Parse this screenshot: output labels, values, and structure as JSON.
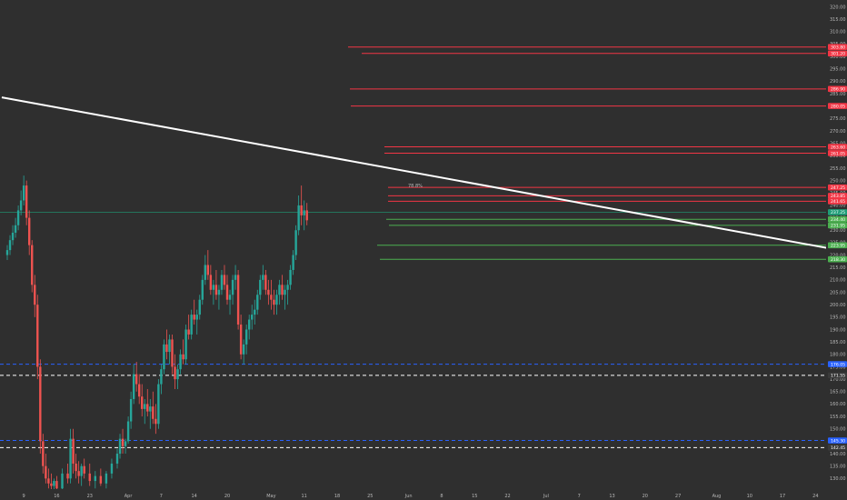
{
  "chart_data": {
    "type": "candlestick",
    "xaxis": {
      "tick_labels": [
        "9",
        "16",
        "23",
        "Apr",
        "7",
        "14",
        "20",
        "May",
        "11",
        "18",
        "25",
        "Jun",
        "8",
        "15",
        "22",
        "Jul",
        "7",
        "13",
        "20",
        "27",
        "Aug",
        "10",
        "17",
        "24"
      ],
      "tick_index": [
        3,
        9,
        15,
        22,
        28,
        34,
        40,
        48,
        54,
        60,
        66,
        73,
        79,
        85,
        91,
        98,
        104,
        110,
        116,
        122,
        129,
        135,
        141,
        147
      ]
    },
    "yaxis": {
      "range": [
        125,
        322
      ],
      "tick_labels": [
        "130.00",
        "135.00",
        "140.00",
        "145.00",
        "150.00",
        "155.00",
        "160.00",
        "165.00",
        "170.00",
        "175.00",
        "180.00",
        "185.00",
        "190.00",
        "195.00",
        "200.00",
        "205.00",
        "210.00",
        "215.00",
        "220.00",
        "225.00",
        "230.00",
        "235.00",
        "240.00",
        "245.00",
        "250.00",
        "255.00",
        "260.00",
        "265.00",
        "270.00",
        "275.00",
        "280.00",
        "285.00",
        "290.00",
        "295.00",
        "300.00",
        "305.00",
        "310.00",
        "315.00",
        "320.00"
      ]
    },
    "colors": {
      "background": "#2f2f2f",
      "up": "#26a69a",
      "down": "#ef5350",
      "resistance": "#f23645",
      "support": "#4caf50",
      "trendline": "#ffffff",
      "dashed_blue": "#2962ff",
      "dashed_white": "#ffffff",
      "last_price_line": "#1e9e78"
    },
    "candles": [
      [
        0,
        220,
        224,
        218,
        222
      ],
      [
        0.5,
        222,
        228,
        220,
        226
      ],
      [
        1,
        226,
        232,
        224,
        229
      ],
      [
        1.5,
        229,
        235,
        227,
        232
      ],
      [
        2,
        232,
        240,
        230,
        238
      ],
      [
        2.5,
        238,
        246,
        236,
        242
      ],
      [
        3,
        242,
        252,
        240,
        248
      ],
      [
        3.5,
        248,
        250,
        232,
        235
      ],
      [
        4,
        235,
        238,
        220,
        224
      ],
      [
        4.5,
        224,
        226,
        205,
        208
      ],
      [
        5,
        208,
        212,
        195,
        200
      ],
      [
        5.5,
        200,
        204,
        170,
        175
      ],
      [
        6,
        175,
        178,
        140,
        145
      ],
      [
        6.5,
        145,
        148,
        132,
        135
      ],
      [
        7,
        135,
        140,
        128,
        130
      ],
      [
        7.5,
        130,
        134,
        126,
        128
      ],
      [
        8,
        128,
        132,
        125,
        127
      ],
      [
        8.5,
        127,
        130,
        125,
        129
      ],
      [
        9,
        129,
        131,
        125,
        126
      ],
      [
        10,
        126,
        134,
        125,
        132
      ],
      [
        11,
        132,
        136,
        128,
        130
      ],
      [
        11.5,
        130,
        150,
        128,
        146
      ],
      [
        12,
        146,
        150,
        132,
        136
      ],
      [
        12.5,
        136,
        140,
        130,
        133
      ],
      [
        13,
        133,
        137,
        128,
        131
      ],
      [
        13.5,
        131,
        136,
        127,
        135
      ],
      [
        14,
        135,
        138,
        130,
        132
      ],
      [
        15,
        132,
        136,
        127,
        129
      ],
      [
        16,
        129,
        133,
        126,
        131
      ],
      [
        17,
        131,
        134,
        127,
        128
      ],
      [
        18,
        128,
        133,
        126,
        132
      ],
      [
        19,
        132,
        138,
        130,
        136
      ],
      [
        20,
        136,
        142,
        134,
        140
      ],
      [
        20.5,
        140,
        148,
        138,
        146
      ],
      [
        21,
        146,
        150,
        140,
        143
      ],
      [
        21.5,
        143,
        146,
        140,
        145
      ],
      [
        22,
        145,
        155,
        144,
        153
      ],
      [
        22.5,
        153,
        165,
        150,
        162
      ],
      [
        23,
        162,
        176,
        160,
        172
      ],
      [
        23.5,
        172,
        177,
        165,
        168
      ],
      [
        24,
        168,
        172,
        160,
        163
      ],
      [
        24.5,
        163,
        168,
        155,
        158
      ],
      [
        25,
        158,
        162,
        152,
        160
      ],
      [
        25.5,
        160,
        166,
        155,
        157
      ],
      [
        26,
        157,
        162,
        150,
        159
      ],
      [
        26.5,
        159,
        165,
        152,
        154
      ],
      [
        27,
        154,
        160,
        148,
        152
      ],
      [
        27.5,
        152,
        170,
        150,
        168
      ],
      [
        28,
        168,
        176,
        164,
        174
      ],
      [
        28.5,
        174,
        186,
        172,
        184
      ],
      [
        29,
        184,
        190,
        178,
        181
      ],
      [
        29.5,
        181,
        188,
        176,
        186
      ],
      [
        30,
        186,
        188,
        172,
        175
      ],
      [
        30.5,
        175,
        180,
        166,
        170
      ],
      [
        31,
        170,
        176,
        166,
        174
      ],
      [
        31.5,
        174,
        182,
        172,
        180
      ],
      [
        32,
        180,
        186,
        176,
        178
      ],
      [
        32.5,
        178,
        192,
        176,
        190
      ],
      [
        33,
        190,
        196,
        186,
        188
      ],
      [
        33.5,
        188,
        198,
        186,
        196
      ],
      [
        34,
        196,
        202,
        192,
        194
      ],
      [
        34.5,
        194,
        198,
        188,
        196
      ],
      [
        35,
        196,
        204,
        194,
        202
      ],
      [
        35.5,
        202,
        212,
        200,
        210
      ],
      [
        36,
        210,
        220,
        208,
        216
      ],
      [
        36.5,
        216,
        222,
        210,
        212
      ],
      [
        37,
        212,
        216,
        204,
        206
      ],
      [
        37.5,
        206,
        210,
        200,
        208
      ],
      [
        38,
        208,
        214,
        202,
        204
      ],
      [
        38.5,
        204,
        208,
        198,
        206
      ],
      [
        39,
        206,
        214,
        204,
        212
      ],
      [
        39.5,
        212,
        216,
        206,
        208
      ],
      [
        40,
        208,
        212,
        200,
        202
      ],
      [
        40.5,
        202,
        206,
        196,
        204
      ],
      [
        41,
        204,
        212,
        200,
        210
      ],
      [
        41.5,
        210,
        216,
        206,
        212
      ],
      [
        42,
        212,
        214,
        190,
        192
      ],
      [
        42.5,
        192,
        196,
        178,
        180
      ],
      [
        43,
        180,
        186,
        176,
        184
      ],
      [
        43.5,
        184,
        192,
        180,
        190
      ],
      [
        44,
        190,
        196,
        186,
        194
      ],
      [
        44.5,
        194,
        200,
        190,
        196
      ],
      [
        45,
        196,
        202,
        192,
        198
      ],
      [
        45.5,
        198,
        206,
        196,
        204
      ],
      [
        46,
        204,
        212,
        202,
        210
      ],
      [
        46.5,
        210,
        216,
        206,
        212
      ],
      [
        47,
        212,
        214,
        204,
        206
      ],
      [
        47.5,
        206,
        210,
        200,
        204
      ],
      [
        48,
        204,
        210,
        198,
        202
      ],
      [
        48.5,
        202,
        206,
        196,
        200
      ],
      [
        49,
        200,
        206,
        196,
        204
      ],
      [
        49.5,
        204,
        210,
        200,
        208
      ],
      [
        50,
        208,
        212,
        202,
        204
      ],
      [
        50.5,
        204,
        208,
        198,
        206
      ],
      [
        51,
        206,
        210,
        200,
        208
      ],
      [
        51.5,
        208,
        216,
        206,
        214
      ],
      [
        52,
        214,
        222,
        212,
        220
      ],
      [
        52.5,
        220,
        232,
        218,
        230
      ],
      [
        53,
        230,
        244,
        228,
        240
      ],
      [
        53.5,
        240,
        248,
        232,
        236
      ],
      [
        54,
        236,
        242,
        230,
        238
      ],
      [
        54.5,
        238,
        241,
        232,
        234
      ]
    ],
    "levels": [
      {
        "type": "resistance",
        "value": 303.8,
        "label": "303.80"
      },
      {
        "type": "resistance",
        "value": 301.2,
        "label": "301.20"
      },
      {
        "type": "resistance",
        "value": 286.9,
        "label": "286.90"
      },
      {
        "type": "resistance",
        "value": 280.05,
        "label": "280.05"
      },
      {
        "type": "resistance",
        "value": 263.6,
        "label": "263.60"
      },
      {
        "type": "resistance",
        "value": 261.05,
        "label": "261.05"
      },
      {
        "type": "resistance",
        "value": 247.25,
        "label": "247.25"
      },
      {
        "type": "resistance",
        "value": 243.85,
        "label": "243.85"
      },
      {
        "type": "resistance",
        "value": 241.65,
        "label": "241.65"
      },
      {
        "type": "support",
        "value": 234.4,
        "label": "234.40"
      },
      {
        "type": "support",
        "value": 231.95,
        "label": "231.95"
      },
      {
        "type": "support",
        "value": 223.95,
        "label": "223.95"
      },
      {
        "type": "support",
        "value": 218.3,
        "label": "218.30"
      },
      {
        "type": "dashed_blue",
        "value": 176.05,
        "label": "176.05"
      },
      {
        "type": "dashed_white",
        "value": 171.55,
        "label": "171.55"
      },
      {
        "type": "dashed_blue",
        "value": 145.3,
        "label": "145.30"
      },
      {
        "type": "dashed_white",
        "value": 142.45,
        "label": "142.45"
      }
    ],
    "last_price": {
      "value": 237.25,
      "label": "237.25"
    },
    "small_annotation": "78.8%",
    "trendline": {
      "from": {
        "x_index": -1,
        "y": 283.5
      },
      "to": {
        "x_index": 150,
        "y": 222.5
      }
    }
  }
}
